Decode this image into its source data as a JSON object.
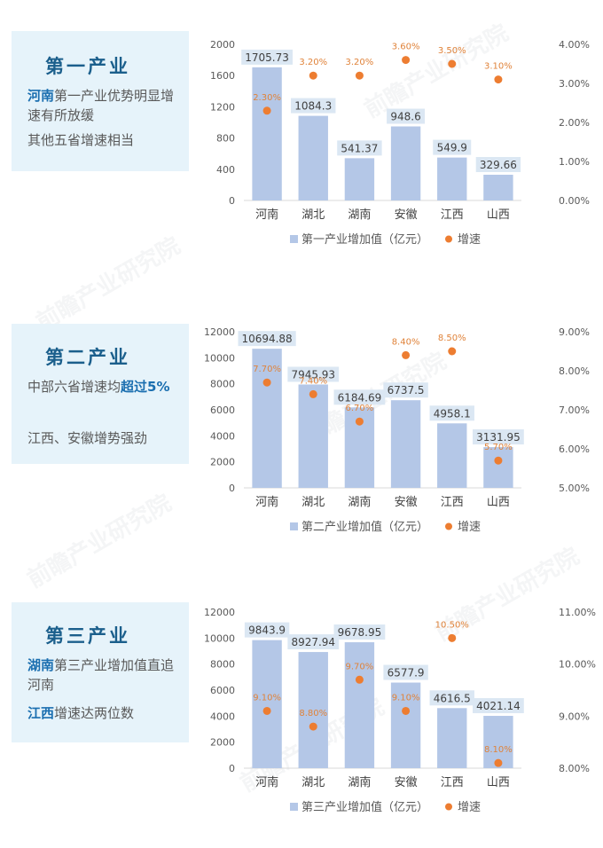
{
  "watermark": "前瞻产业研究院",
  "sections": [
    {
      "title": "第一产业",
      "lines": [
        {
          "parts": [
            {
              "t": "河南",
              "b": true
            },
            {
              "t": "第一产业优势明显增速有所放缓",
              "b": false
            }
          ]
        },
        {
          "parts": [
            {
              "t": "其他五省增速相当",
              "b": false
            }
          ]
        }
      ]
    },
    {
      "title": "第二产业",
      "lines": [
        {
          "parts": [
            {
              "t": "中部六省增速均",
              "b": false
            },
            {
              "t": "超过5%",
              "b": true
            }
          ]
        },
        {
          "parts": [
            {
              "t": "江西、安徽增势强劲",
              "b": false
            }
          ]
        }
      ]
    },
    {
      "title": "第三产业",
      "lines": [
        {
          "parts": [
            {
              "t": "湖南",
              "b": true
            },
            {
              "t": "第三产业增加值直追河南",
              "b": false
            }
          ]
        },
        {
          "parts": [
            {
              "t": "江西",
              "b": true
            },
            {
              "t": "增速达两位数",
              "b": false
            }
          ]
        }
      ]
    }
  ],
  "chart_data": [
    {
      "type": "bar",
      "categories": [
        "河南",
        "湖北",
        "湖南",
        "安徽",
        "江西",
        "山西"
      ],
      "series": [
        {
          "name": "第一产业增加值（亿元）",
          "type": "bar",
          "values": [
            1705.73,
            1084.3,
            541.37,
            948.6,
            549.9,
            329.66
          ],
          "labels": [
            "1705.73",
            "1084.3",
            "541.37",
            "948.6",
            "549.9",
            "329.66"
          ]
        },
        {
          "name": "增速",
          "type": "scatter",
          "values": [
            2.3,
            3.2,
            3.2,
            3.6,
            3.5,
            3.1
          ],
          "labels": [
            "2.30%",
            "3.20%",
            "3.20%",
            "3.60%",
            "3.50%",
            "3.10%"
          ]
        }
      ],
      "ylim": [
        0,
        2000
      ],
      "yticks": [
        "0",
        "400",
        "800",
        "1200",
        "1600",
        "2000"
      ],
      "y2lim": [
        0,
        4
      ],
      "y2ticks": [
        "0.00%",
        "1.00%",
        "2.00%",
        "3.00%",
        "4.00%"
      ],
      "colors": {
        "bar": "#b4c7e7",
        "dot": "#ed7d31"
      },
      "legend": "bottom"
    },
    {
      "type": "bar",
      "categories": [
        "河南",
        "湖北",
        "湖南",
        "安徽",
        "江西",
        "山西"
      ],
      "series": [
        {
          "name": "第二产业增加值（亿元）",
          "type": "bar",
          "values": [
            10694.88,
            7945.93,
            6184.69,
            6737.5,
            4958.1,
            3131.95
          ],
          "labels": [
            "10694.88",
            "7945.93",
            "6184.69",
            "6737.5",
            "4958.1",
            "3131.95"
          ]
        },
        {
          "name": "增速",
          "type": "scatter",
          "values": [
            7.7,
            7.4,
            6.7,
            8.4,
            8.5,
            5.7
          ],
          "labels": [
            "7.70%",
            "7.40%",
            "6.70%",
            "8.40%",
            "8.50%",
            "5.70%"
          ]
        }
      ],
      "ylim": [
        0,
        12000
      ],
      "yticks": [
        "0",
        "2000",
        "4000",
        "6000",
        "8000",
        "10000",
        "12000"
      ],
      "y2lim": [
        5,
        9
      ],
      "y2ticks": [
        "5.00%",
        "6.00%",
        "7.00%",
        "8.00%",
        "9.00%"
      ],
      "colors": {
        "bar": "#b4c7e7",
        "dot": "#ed7d31"
      },
      "legend": "bottom"
    },
    {
      "type": "bar",
      "categories": [
        "河南",
        "湖北",
        "湖南",
        "安徽",
        "江西",
        "山西"
      ],
      "series": [
        {
          "name": "第三产业增加值（亿元）",
          "type": "bar",
          "values": [
            9843.9,
            8927.94,
            9678.95,
            6577.9,
            4616.5,
            4021.14
          ],
          "labels": [
            "9843.9",
            "8927.94",
            "9678.95",
            "6577.9",
            "4616.5",
            "4021.14"
          ]
        },
        {
          "name": "增速",
          "type": "scatter",
          "values": [
            9.1,
            8.8,
            9.7,
            9.1,
            10.5,
            8.1
          ],
          "labels": [
            "9.10%",
            "8.80%",
            "9.70%",
            "9.10%",
            "10.50%",
            "8.10%"
          ]
        }
      ],
      "ylim": [
        0,
        12000
      ],
      "yticks": [
        "0",
        "2000",
        "4000",
        "6000",
        "8000",
        "10000",
        "12000"
      ],
      "y2lim": [
        8,
        11
      ],
      "y2ticks": [
        "8.00%",
        "9.00%",
        "10.00%",
        "11.00%"
      ],
      "colors": {
        "bar": "#b4c7e7",
        "dot": "#ed7d31"
      },
      "legend": "bottom"
    }
  ]
}
